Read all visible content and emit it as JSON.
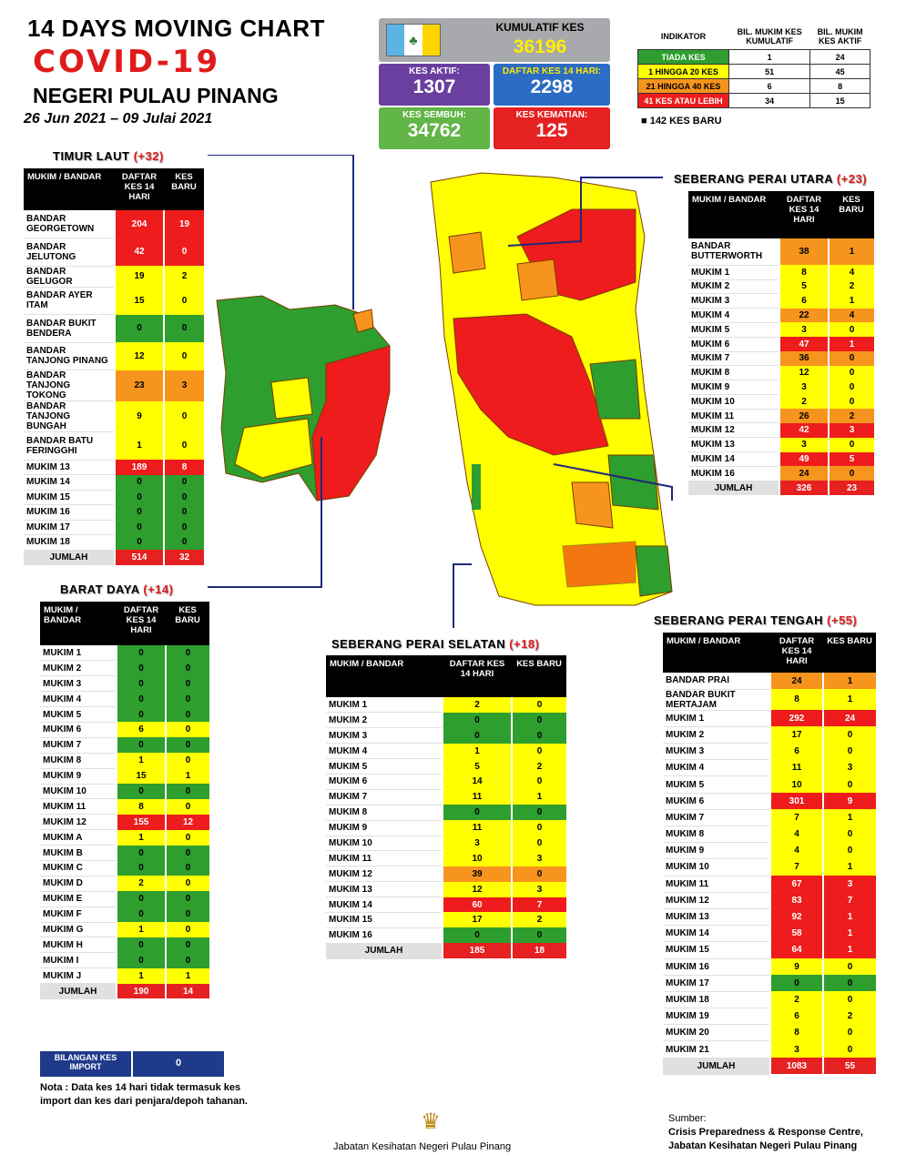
{
  "header": {
    "line1": "14  DAYS MOVING CHART",
    "line2": "COVID-19",
    "line3": "NEGERI PULAU PINANG",
    "dates": "26 Jun 2021 – 09 Julai 2021"
  },
  "stats": {
    "kumulatif_label": "KUMULATIF KES",
    "kumulatif_value": "36196",
    "aktif_label": "KES AKTIF:",
    "aktif_value": "1307",
    "daftar_label": "DAFTAR KES 14 HARI:",
    "daftar_value": "2298",
    "sembuh_label": "KES SEMBUH:",
    "sembuh_value": "34762",
    "kematian_label": "KES KEMATIAN:",
    "kematian_value": "125"
  },
  "legend": {
    "col1": "INDIKATOR",
    "col2": "BIL. MUKIM KES KUMULATIF",
    "col3": "BIL. MUKIM KES AKTIF",
    "rows": [
      {
        "label": "TIADA KES",
        "kum": "1",
        "aktif": "24",
        "color": "#2e9e2e"
      },
      {
        "label": "1 HINGGA 20 KES",
        "kum": "51",
        "aktif": "45",
        "color": "#ffff00"
      },
      {
        "label": "21 HINGGA 40 KES",
        "kum": "6",
        "aktif": "8",
        "color": "#f7941d"
      },
      {
        "label": "41 KES ATAU LEBIH",
        "kum": "34",
        "aktif": "15",
        "color": "#ee1c1c"
      }
    ],
    "new_cases": "■  142 KES BARU"
  },
  "table_headers": {
    "mukim": "MUKIM / BANDAR",
    "daftar": "DAFTAR KES 14 HARI",
    "baru": "KES BARU"
  },
  "timur_laut": {
    "title": "TIMUR LAUT",
    "inc": "(+32)",
    "rows": [
      [
        "BANDAR GEORGETOWN",
        "204",
        "19",
        "r",
        "r"
      ],
      [
        "BANDAR JELUTONG",
        "42",
        "0",
        "r",
        "r"
      ],
      [
        "BANDAR GELUGOR",
        "19",
        "2",
        "y",
        "y"
      ],
      [
        "BANDAR AYER ITAM",
        "15",
        "0",
        "y",
        "y"
      ],
      [
        "BANDAR BUKIT BENDERA",
        "0",
        "0",
        "g",
        "g"
      ],
      [
        "BANDAR TANJONG PINANG",
        "12",
        "0",
        "y",
        "y"
      ],
      [
        "BANDAR TANJONG TOKONG",
        "23",
        "3",
        "o",
        "o"
      ],
      [
        "BANDAR TANJONG BUNGAH",
        "9",
        "0",
        "y",
        "y"
      ],
      [
        "BANDAR BATU FERINGGHI",
        "1",
        "0",
        "y",
        "y"
      ],
      [
        "MUKIM 13",
        "189",
        "8",
        "r",
        "r"
      ],
      [
        "MUKIM 14",
        "0",
        "0",
        "g",
        "g"
      ],
      [
        "MUKIM 15",
        "0",
        "0",
        "g",
        "g"
      ],
      [
        "MUKIM 16",
        "0",
        "0",
        "g",
        "g"
      ],
      [
        "MUKIM 17",
        "0",
        "0",
        "g",
        "g"
      ],
      [
        "MUKIM 18",
        "0",
        "0",
        "g",
        "g"
      ]
    ],
    "total": [
      "JUMLAH",
      "514",
      "32"
    ]
  },
  "barat_daya": {
    "title": "BARAT DAYA",
    "inc": "(+14)",
    "rows": [
      [
        "MUKIM 1",
        "0",
        "0",
        "g",
        "g"
      ],
      [
        "MUKIM 2",
        "0",
        "0",
        "g",
        "g"
      ],
      [
        "MUKIM 3",
        "0",
        "0",
        "g",
        "g"
      ],
      [
        "MUKIM 4",
        "0",
        "0",
        "g",
        "g"
      ],
      [
        "MUKIM 5",
        "0",
        "0",
        "g",
        "g"
      ],
      [
        "MUKIM 6",
        "6",
        "0",
        "y",
        "y"
      ],
      [
        "MUKIM 7",
        "0",
        "0",
        "g",
        "g"
      ],
      [
        "MUKIM 8",
        "1",
        "0",
        "y",
        "y"
      ],
      [
        "MUKIM 9",
        "15",
        "1",
        "y",
        "y"
      ],
      [
        "MUKIM 10",
        "0",
        "0",
        "g",
        "g"
      ],
      [
        "MUKIM 11",
        "8",
        "0",
        "y",
        "y"
      ],
      [
        "MUKIM 12",
        "155",
        "12",
        "r",
        "r"
      ],
      [
        "MUKIM A",
        "1",
        "0",
        "y",
        "y"
      ],
      [
        "MUKIM B",
        "0",
        "0",
        "g",
        "g"
      ],
      [
        "MUKIM C",
        "0",
        "0",
        "g",
        "g"
      ],
      [
        "MUKIM D",
        "2",
        "0",
        "y",
        "y"
      ],
      [
        "MUKIM E",
        "0",
        "0",
        "g",
        "g"
      ],
      [
        "MUKIM F",
        "0",
        "0",
        "g",
        "g"
      ],
      [
        "MUKIM G",
        "1",
        "0",
        "y",
        "y"
      ],
      [
        "MUKIM H",
        "0",
        "0",
        "g",
        "g"
      ],
      [
        "MUKIM I",
        "0",
        "0",
        "g",
        "g"
      ],
      [
        "MUKIM J",
        "1",
        "1",
        "y",
        "y"
      ]
    ],
    "total": [
      "JUMLAH",
      "190",
      "14"
    ]
  },
  "spu": {
    "title": "SEBERANG PERAI UTARA",
    "inc": "(+23)",
    "rows": [
      [
        "BANDAR BUTTERWORTH",
        "38",
        "1",
        "o",
        "o"
      ],
      [
        "MUKIM 1",
        "8",
        "4",
        "y",
        "y"
      ],
      [
        "MUKIM 2",
        "5",
        "2",
        "y",
        "y"
      ],
      [
        "MUKIM 3",
        "6",
        "1",
        "y",
        "y"
      ],
      [
        "MUKIM 4",
        "22",
        "4",
        "o",
        "o"
      ],
      [
        "MUKIM 5",
        "3",
        "0",
        "y",
        "y"
      ],
      [
        "MUKIM 6",
        "47",
        "1",
        "r",
        "r"
      ],
      [
        "MUKIM 7",
        "36",
        "0",
        "o",
        "o"
      ],
      [
        "MUKIM 8",
        "12",
        "0",
        "y",
        "y"
      ],
      [
        "MUKIM 9",
        "3",
        "0",
        "y",
        "y"
      ],
      [
        "MUKIM 10",
        "2",
        "0",
        "y",
        "y"
      ],
      [
        "MUKIM 11",
        "26",
        "2",
        "o",
        "o"
      ],
      [
        "MUKIM 12",
        "42",
        "3",
        "r",
        "r"
      ],
      [
        "MUKIM 13",
        "3",
        "0",
        "y",
        "y"
      ],
      [
        "MUKIM 14",
        "49",
        "5",
        "r",
        "r"
      ],
      [
        "MUKIM 16",
        "24",
        "0",
        "o",
        "o"
      ]
    ],
    "total": [
      "JUMLAH",
      "326",
      "23"
    ]
  },
  "sps": {
    "title": "SEBERANG PERAI SELATAN",
    "inc": "(+18)",
    "rows": [
      [
        "MUKIM 1",
        "2",
        "0",
        "y",
        "y"
      ],
      [
        "MUKIM 2",
        "0",
        "0",
        "g",
        "g"
      ],
      [
        "MUKIM 3",
        "0",
        "0",
        "g",
        "g"
      ],
      [
        "MUKIM 4",
        "1",
        "0",
        "y",
        "y"
      ],
      [
        "MUKIM 5",
        "5",
        "2",
        "y",
        "y"
      ],
      [
        "MUKIM 6",
        "14",
        "0",
        "y",
        "y"
      ],
      [
        "MUKIM 7",
        "11",
        "1",
        "y",
        "y"
      ],
      [
        "MUKIM 8",
        "0",
        "0",
        "g",
        "g"
      ],
      [
        "MUKIM 9",
        "11",
        "0",
        "y",
        "y"
      ],
      [
        "MUKIM 10",
        "3",
        "0",
        "y",
        "y"
      ],
      [
        "MUKIM 11",
        "10",
        "3",
        "y",
        "y"
      ],
      [
        "MUKIM 12",
        "39",
        "0",
        "o",
        "o"
      ],
      [
        "MUKIM 13",
        "12",
        "3",
        "y",
        "y"
      ],
      [
        "MUKIM 14",
        "60",
        "7",
        "r",
        "r"
      ],
      [
        "MUKIM 15",
        "17",
        "2",
        "y",
        "y"
      ],
      [
        "MUKIM 16",
        "0",
        "0",
        "g",
        "g"
      ]
    ],
    "total": [
      "JUMLAH",
      "185",
      "18"
    ]
  },
  "spt": {
    "title": "SEBERANG PERAI TENGAH",
    "inc": "(+55)",
    "rows": [
      [
        "BANDAR PRAI",
        "24",
        "1",
        "o",
        "o"
      ],
      [
        "BANDAR BUKIT MERTAJAM",
        "8",
        "1",
        "y",
        "y"
      ],
      [
        "MUKIM 1",
        "292",
        "24",
        "r",
        "r"
      ],
      [
        "MUKIM 2",
        "17",
        "0",
        "y",
        "y"
      ],
      [
        "MUKIM 3",
        "6",
        "0",
        "y",
        "y"
      ],
      [
        "MUKIM 4",
        "11",
        "3",
        "y",
        "y"
      ],
      [
        "MUKIM 5",
        "10",
        "0",
        "y",
        "y"
      ],
      [
        "MUKIM 6",
        "301",
        "9",
        "r",
        "r"
      ],
      [
        "MUKIM 7",
        "7",
        "1",
        "y",
        "y"
      ],
      [
        "MUKIM 8",
        "4",
        "0",
        "y",
        "y"
      ],
      [
        "MUKIM 9",
        "4",
        "0",
        "y",
        "y"
      ],
      [
        "MUKIM 10",
        "7",
        "1",
        "y",
        "y"
      ],
      [
        "MUKIM 11",
        "67",
        "3",
        "r",
        "r"
      ],
      [
        "MUKIM 12",
        "83",
        "7",
        "r",
        "r"
      ],
      [
        "MUKIM 13",
        "92",
        "1",
        "r",
        "r"
      ],
      [
        "MUKIM 14",
        "58",
        "1",
        "r",
        "r"
      ],
      [
        "MUKIM 15",
        "64",
        "1",
        "r",
        "r"
      ],
      [
        "MUKIM 16",
        "9",
        "0",
        "y",
        "y"
      ],
      [
        "MUKIM 17",
        "0",
        "0",
        "g",
        "g"
      ],
      [
        "MUKIM 18",
        "2",
        "0",
        "y",
        "y"
      ],
      [
        "MUKIM 19",
        "6",
        "2",
        "y",
        "y"
      ],
      [
        "MUKIM 20",
        "8",
        "0",
        "y",
        "y"
      ],
      [
        "MUKIM 21",
        "3",
        "0",
        "y",
        "y"
      ]
    ],
    "total": [
      "JUMLAH",
      "1083",
      "55"
    ]
  },
  "import": {
    "label": "BILANGAN KES IMPORT",
    "value": "0"
  },
  "note": "Nota : Data kes 14 hari tidak termasuk kes import dan kes dari penjara/depoh tahanan.",
  "source": {
    "label": "Sumber:",
    "line1": "Crisis Preparedness & Response Centre,",
    "line2": "Jabatan Kesihatan Negeri Pulau Pinang"
  },
  "footer": "Jabatan Kesihatan Negeri Pulau Pinang"
}
